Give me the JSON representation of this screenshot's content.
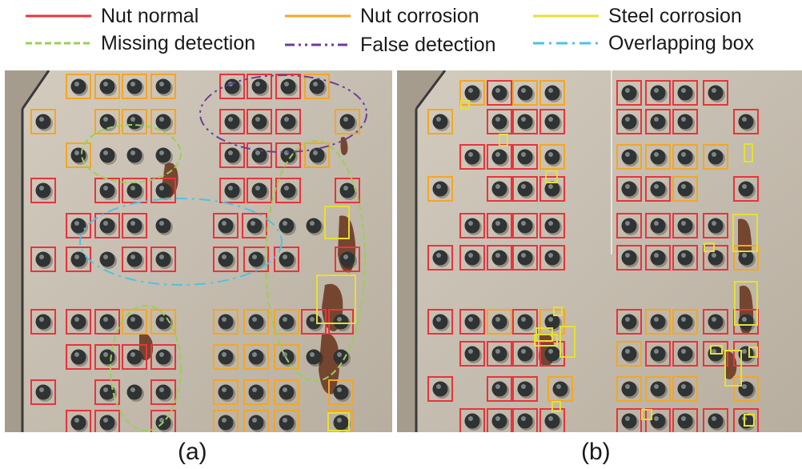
{
  "legend": {
    "items": [
      {
        "label": "Nut normal",
        "color": "#e8343c",
        "dash": "solid"
      },
      {
        "label": "Nut corrosion",
        "color": "#f5a623",
        "dash": "solid"
      },
      {
        "label": "Steel corrosion",
        "color": "#e6e033",
        "dash": "solid"
      },
      {
        "label": "Missing detection",
        "color": "#9bcf53",
        "dash": "dashed"
      },
      {
        "label": "False detection",
        "color": "#6a3d9a",
        "dash": "dashdotdot"
      },
      {
        "label": "Overlapping box",
        "color": "#4cc2e8",
        "dash": "dashdot"
      }
    ]
  },
  "panels": {
    "a": {
      "caption": "(a)"
    },
    "b": {
      "caption": "(b)"
    }
  },
  "colors": {
    "plate": "#c9c1b4",
    "plate_dark": "#b7ae9f",
    "nut": "#2f3333",
    "rust": "#6b3a22"
  }
}
